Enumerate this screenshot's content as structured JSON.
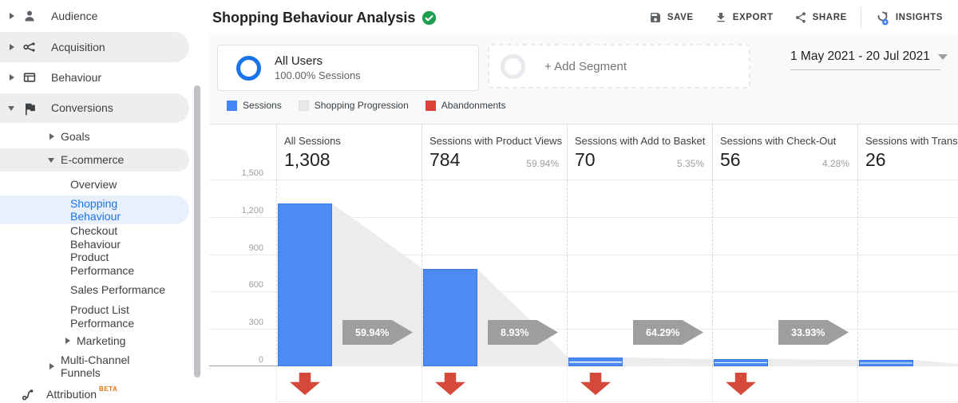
{
  "app": {
    "title": "Shopping Behaviour Analysis"
  },
  "header": {
    "actions": [
      {
        "label": "SAVE",
        "icon": "save-icon"
      },
      {
        "label": "EXPORT",
        "icon": "download-icon"
      },
      {
        "label": "SHARE",
        "icon": "share-icon"
      },
      {
        "label": "INSIGHTS",
        "icon": "insights-icon"
      }
    ]
  },
  "sidebar": {
    "beta_tag": "BETA",
    "items": [
      {
        "label": "Audience"
      },
      {
        "label": "Acquisition"
      },
      {
        "label": "Behaviour"
      },
      {
        "label": "Conversions"
      },
      {
        "label": "Goals"
      },
      {
        "label": "E-commerce"
      },
      {
        "label": "Overview"
      },
      {
        "label": "Shopping Behaviour"
      },
      {
        "label": "Checkout Behaviour"
      },
      {
        "label": "Product Performance"
      },
      {
        "label": "Sales Performance"
      },
      {
        "label": "Product List Performance"
      },
      {
        "label": "Marketing"
      },
      {
        "label": "Multi-Channel Funnels"
      },
      {
        "label": "Attribution"
      }
    ]
  },
  "segments": {
    "all_users": {
      "title": "All Users",
      "subtitle": "100.00% Sessions"
    },
    "add_segment_label": "+ Add Segment"
  },
  "date_range": {
    "label": "1 May 2021 - 20 Jul 2021"
  },
  "chart_data": {
    "type": "bar",
    "subtype": "shopping-behaviour-funnel",
    "title": "Shopping Behaviour Analysis",
    "ylabel": "Sessions",
    "ylim": [
      0,
      1500
    ],
    "yticks": [
      0,
      300,
      600,
      900,
      1200,
      1500
    ],
    "grid": true,
    "legend": [
      {
        "label": "Sessions",
        "color": "#4285f4"
      },
      {
        "label": "Shopping Progression",
        "color": "#e9e9e9"
      },
      {
        "label": "Abandonments",
        "color": "#db4437"
      }
    ],
    "columns": [
      {
        "label": "All Sessions",
        "value_display": "1,308",
        "value": 1308,
        "pct": "",
        "red_arrow": true
      },
      {
        "label": "Sessions with Product Views",
        "value_display": "784",
        "value": 784,
        "pct": "59.94%",
        "red_arrow": true
      },
      {
        "label": "Sessions with Add to Basket",
        "value_display": "70",
        "value": 70,
        "pct": "5.35%",
        "red_arrow": true
      },
      {
        "label": "Sessions with Check-Out",
        "value_display": "56",
        "value": 56,
        "pct": "4.28%",
        "red_arrow": true
      },
      {
        "label": "Sessions with Transactions",
        "value_display": "26",
        "value": 26,
        "pct": "",
        "red_arrow": false
      }
    ],
    "progression_arrows": [
      "59.94%",
      "8.93%",
      "64.29%",
      "33.93%"
    ],
    "colors": {
      "bar": "#4c8bf5",
      "bar_border": "#3b78e7",
      "progression": "#ececec",
      "arrow": "#9e9e9e",
      "abandonment": "#d6493a"
    }
  }
}
